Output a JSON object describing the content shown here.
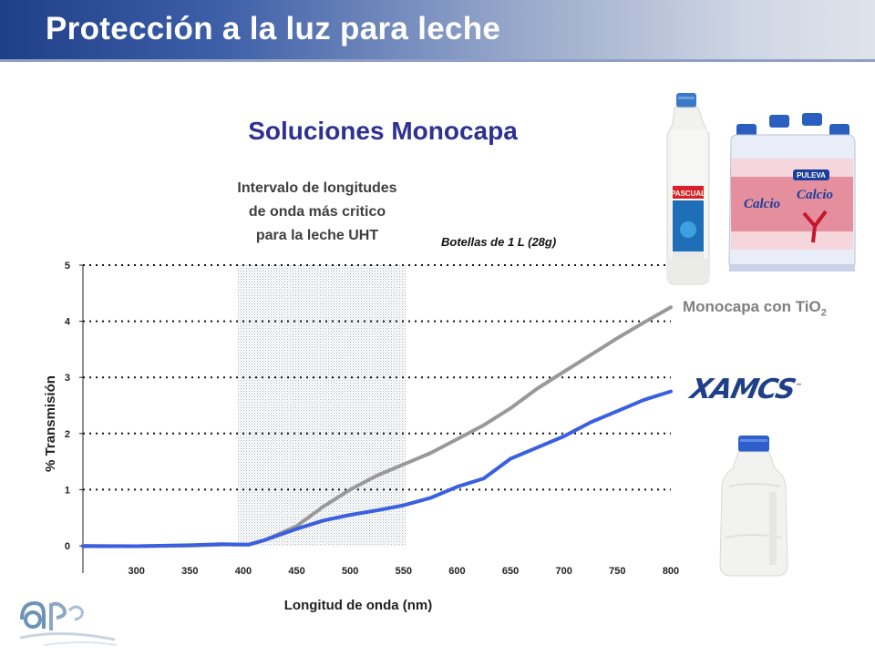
{
  "page": {
    "title": "Protección a la luz para leche",
    "subtitle": "Soluciones Monocapa",
    "critical_line1": "Intervalo de longitudes",
    "critical_line2": "de onda más critico",
    "critical_line3": "para la leche UHT",
    "bottle_note": "Botellas de 1 L (28g)",
    "series_label": "Monocapa con TiO",
    "series_label_sub": "2",
    "brand_mark": "XAMCS",
    "brand_tm": "™"
  },
  "chart_data": {
    "type": "line",
    "xlabel": "Longitud de onda (nm)",
    "ylabel": "% Transmisión",
    "x_ticks": [
      "300",
      "350",
      "400",
      "450",
      "500",
      "550",
      "600",
      "650",
      "700",
      "750",
      "800"
    ],
    "y_ticks": [
      "0",
      "1",
      "2",
      "3",
      "4",
      "5"
    ],
    "xlim": [
      250,
      800
    ],
    "ylim": [
      0,
      5
    ],
    "grid": "horizontal dotted",
    "highlight_range": [
      395,
      552
    ],
    "series": [
      {
        "name": "Monocapa con TiO2",
        "color": "#999999",
        "x": [
          250,
          300,
          350,
          380,
          405,
          420,
          450,
          475,
          500,
          525,
          550,
          575,
          600,
          625,
          650,
          675,
          700,
          725,
          750,
          775,
          800
        ],
        "y": [
          0.0,
          0.0,
          0.01,
          0.02,
          0.02,
          0.1,
          0.35,
          0.7,
          1.0,
          1.25,
          1.45,
          1.65,
          1.9,
          2.15,
          2.45,
          2.8,
          3.1,
          3.4,
          3.7,
          3.98,
          4.25
        ]
      },
      {
        "name": "",
        "color": "#3a5fe0",
        "x": [
          250,
          300,
          350,
          380,
          405,
          420,
          450,
          475,
          500,
          525,
          550,
          575,
          600,
          625,
          650,
          675,
          700,
          725,
          750,
          775,
          800
        ],
        "y": [
          0.0,
          0.0,
          0.01,
          0.02,
          0.02,
          0.1,
          0.3,
          0.45,
          0.55,
          0.63,
          0.72,
          0.85,
          1.05,
          1.2,
          1.55,
          1.75,
          1.95,
          2.2,
          2.4,
          2.6,
          2.75
        ]
      }
    ]
  },
  "images": {
    "bottle_tall_label": "PASCUAL",
    "six_pack_label": "Calcio",
    "six_pack_brand": "PULEVA"
  }
}
